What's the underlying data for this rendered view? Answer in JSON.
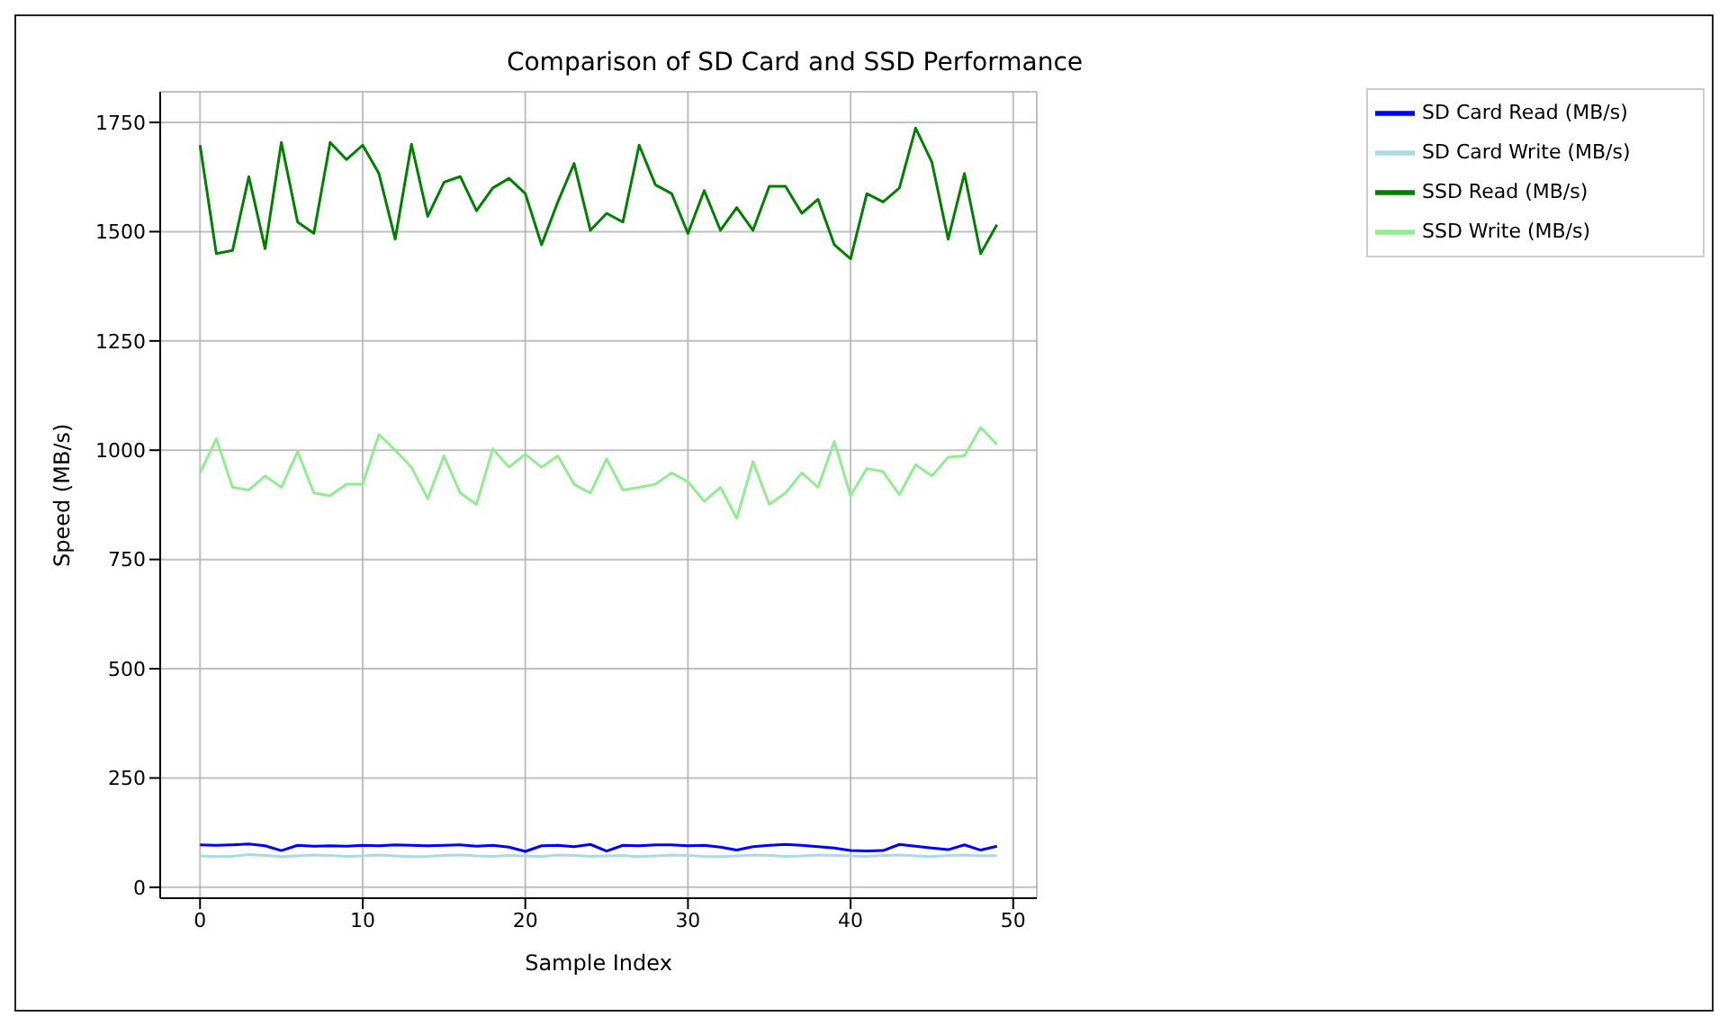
{
  "chart_data": {
    "type": "line",
    "title": "Comparison of SD Card and SSD Performance",
    "xlabel": "Sample Index",
    "ylabel": "Speed (MB/s)",
    "x": [
      0,
      1,
      2,
      3,
      4,
      5,
      6,
      7,
      8,
      9,
      10,
      11,
      12,
      13,
      14,
      15,
      16,
      17,
      18,
      19,
      20,
      21,
      22,
      23,
      24,
      25,
      26,
      27,
      28,
      29,
      30,
      31,
      32,
      33,
      34,
      35,
      36,
      37,
      38,
      39,
      40,
      41,
      42,
      43,
      44,
      45,
      46,
      47,
      48,
      49
    ],
    "series": [
      {
        "name": "SD Card Read (MB/s)",
        "color": "#0000ff",
        "values": [
          97,
          96,
          97,
          99,
          95,
          84,
          96,
          94,
          95,
          94,
          96,
          95,
          97,
          96,
          95,
          96,
          97,
          94,
          96,
          92,
          82,
          95,
          96,
          93,
          98,
          83,
          96,
          95,
          97,
          97,
          95,
          96,
          92,
          85,
          93,
          96,
          98,
          96,
          93,
          90,
          84,
          83,
          84,
          98,
          94,
          90,
          86,
          97,
          85,
          94
        ]
      },
      {
        "name": "SD Card Write (MB/s)",
        "color": "#add8e6",
        "values": [
          72,
          70,
          71,
          75,
          73,
          70,
          72,
          74,
          73,
          71,
          72,
          74,
          72,
          70,
          71,
          73,
          74,
          72,
          71,
          73,
          72,
          70,
          74,
          73,
          71,
          72,
          73,
          70,
          72,
          74,
          73,
          71,
          70,
          72,
          74,
          73,
          71,
          72,
          74,
          73,
          72,
          71,
          73,
          74,
          72,
          70,
          73,
          74,
          72,
          73
        ]
      },
      {
        "name": "SSD Read (MB/s)",
        "color": "#008000",
        "values": [
          1698,
          1450,
          1457,
          1626,
          1461,
          1704,
          1522,
          1496,
          1704,
          1665,
          1698,
          1633,
          1483,
          1700,
          1535,
          1613,
          1626,
          1548,
          1600,
          1622,
          1587,
          1470,
          1568,
          1656,
          1503,
          1542,
          1522,
          1698,
          1607,
          1587,
          1496,
          1594,
          1503,
          1555,
          1503,
          1604,
          1604,
          1542,
          1574,
          1470,
          1438,
          1587,
          1568,
          1600,
          1737,
          1659,
          1483,
          1633,
          1450,
          1516
        ]
      },
      {
        "name": "SSD Write (MB/s)",
        "color": "#90ee90",
        "values": [
          948,
          1026,
          915,
          909,
          941,
          915,
          997,
          902,
          896,
          922,
          922,
          1036,
          1000,
          961,
          889,
          987,
          902,
          876,
          1003,
          961,
          991,
          961,
          987,
          922,
          902,
          980,
          909,
          915,
          922,
          948,
          928,
          883,
          915,
          844,
          974,
          876,
          902,
          948,
          915,
          1020,
          896,
          958,
          951,
          898,
          967,
          941,
          984,
          987,
          1052,
          1013
        ]
      }
    ],
    "xlim": [
      -2.45,
      51.45
    ],
    "xticks": [
      0,
      10,
      20,
      30,
      40,
      50
    ],
    "ylim": [
      -25,
      1820
    ],
    "yticks": [
      0,
      250,
      500,
      750,
      1000,
      1250,
      1500,
      1750
    ],
    "grid": true,
    "legend": "top right",
    "marker": "none",
    "line_style": "solid"
  }
}
